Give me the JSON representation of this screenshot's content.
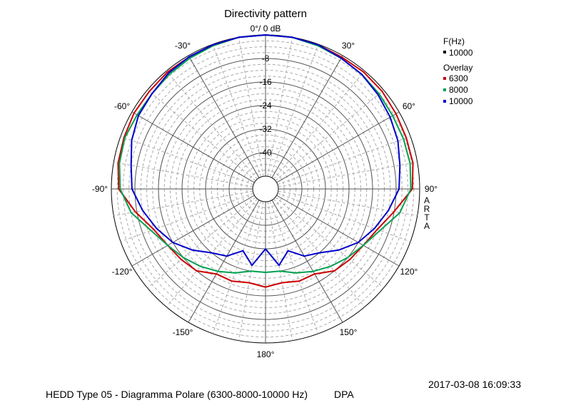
{
  "chart_data": {
    "type": "polar-line",
    "title": "Directivity pattern",
    "radial_unit": "dB",
    "top_label": "0°/ 0 dB",
    "radial_ticks": [
      "-8",
      "-16",
      "-24",
      "-32",
      "-40"
    ],
    "radial_values": [
      -8,
      -16,
      -24,
      -32,
      -40
    ],
    "rlim": [
      -48,
      0
    ],
    "angle_labels": [
      {
        "deg": 30,
        "text": "30°"
      },
      {
        "deg": 60,
        "text": "60°"
      },
      {
        "deg": 90,
        "text": "90°"
      },
      {
        "deg": 120,
        "text": "120°"
      },
      {
        "deg": 150,
        "text": "150°"
      },
      {
        "deg": 180,
        "text": "180°"
      },
      {
        "deg": -150,
        "text": "-150°"
      },
      {
        "deg": -120,
        "text": "-120°"
      },
      {
        "deg": -90,
        "text": "-90°"
      },
      {
        "deg": -60,
        "text": "-60°"
      },
      {
        "deg": -30,
        "text": "-30°"
      }
    ],
    "grid": true,
    "watermark": "ARTA",
    "legend": {
      "placement": "top-right",
      "freq_header": "F(Hz)",
      "freq_value": "10000",
      "freq_color": "#000000",
      "overlay_header": "Overlay"
    },
    "series": [
      {
        "name": "6300",
        "color": "#cc0000",
        "angles": [
          -180,
          -170,
          -160,
          -150,
          -140,
          -130,
          -120,
          -110,
          -100,
          -90,
          -80,
          -70,
          -60,
          -50,
          -40,
          -30,
          -20,
          -10,
          0,
          10,
          20,
          30,
          40,
          50,
          60,
          70,
          80,
          90,
          100,
          110,
          120,
          130,
          140,
          150,
          160,
          170,
          180
        ],
        "values": [
          -19,
          -20,
          -19,
          -19,
          -16,
          -15,
          -14,
          -12,
          -7.5,
          -2.5,
          -1.5,
          -1.2,
          -0.8,
          -0.8,
          -0.5,
          -0.5,
          -0.2,
          0,
          0,
          0,
          -0.2,
          -0.6,
          -0.5,
          -0.7,
          -1.2,
          -1.5,
          -1.5,
          -2.5,
          -8,
          -12,
          -14,
          -15,
          -16,
          -19,
          -19,
          -20,
          -19
        ]
      },
      {
        "name": "8000",
        "color": "#00a050",
        "angles": [
          -180,
          -170,
          -160,
          -150,
          -140,
          -130,
          -120,
          -110,
          -100,
          -90,
          -80,
          -70,
          -60,
          -50,
          -40,
          -30,
          -20,
          -10,
          0,
          10,
          20,
          30,
          40,
          50,
          60,
          70,
          80,
          90,
          100,
          110,
          120,
          130,
          140,
          150,
          160,
          170,
          180
        ],
        "values": [
          -24,
          -24,
          -22,
          -20,
          -18,
          -16,
          -14,
          -11,
          -6,
          -3,
          -2,
          -1.5,
          -2,
          -2,
          -1.5,
          -1,
          -0.5,
          0,
          0,
          0,
          -0.5,
          -1,
          -1.5,
          -2,
          -2.5,
          -2.5,
          -2.5,
          -3,
          -6,
          -11,
          -14,
          -16,
          -18,
          -20,
          -22,
          -24,
          -24
        ]
      },
      {
        "name": "10000",
        "color": "#0000cc",
        "angles": [
          -180,
          -170,
          -160,
          -150,
          -140,
          -130,
          -120,
          -110,
          -100,
          -90,
          -80,
          -70,
          -60,
          -50,
          -40,
          -30,
          -20,
          -10,
          0,
          10,
          20,
          30,
          40,
          50,
          60,
          70,
          80,
          90,
          100,
          110,
          120,
          130,
          140,
          150,
          160,
          170,
          180
        ],
        "values": [
          -32,
          -26,
          -30,
          -26,
          -24,
          -20,
          -16,
          -13,
          -10,
          -7,
          -6,
          -4,
          -2.5,
          -2,
          -1,
          -0.5,
          -0.2,
          0,
          0,
          0,
          -0.2,
          -1,
          -1.5,
          -2.5,
          -3.5,
          -4.5,
          -6,
          -7,
          -10,
          -13,
          -16,
          -20,
          -24,
          -26,
          -30,
          -26,
          -32
        ]
      }
    ]
  },
  "footer": {
    "caption": "HEDD Type 05 - Diagramma Polare (6300-8000-10000 Hz)",
    "source": "DPA",
    "timestamp": "2017-03-08  16:09:33"
  }
}
